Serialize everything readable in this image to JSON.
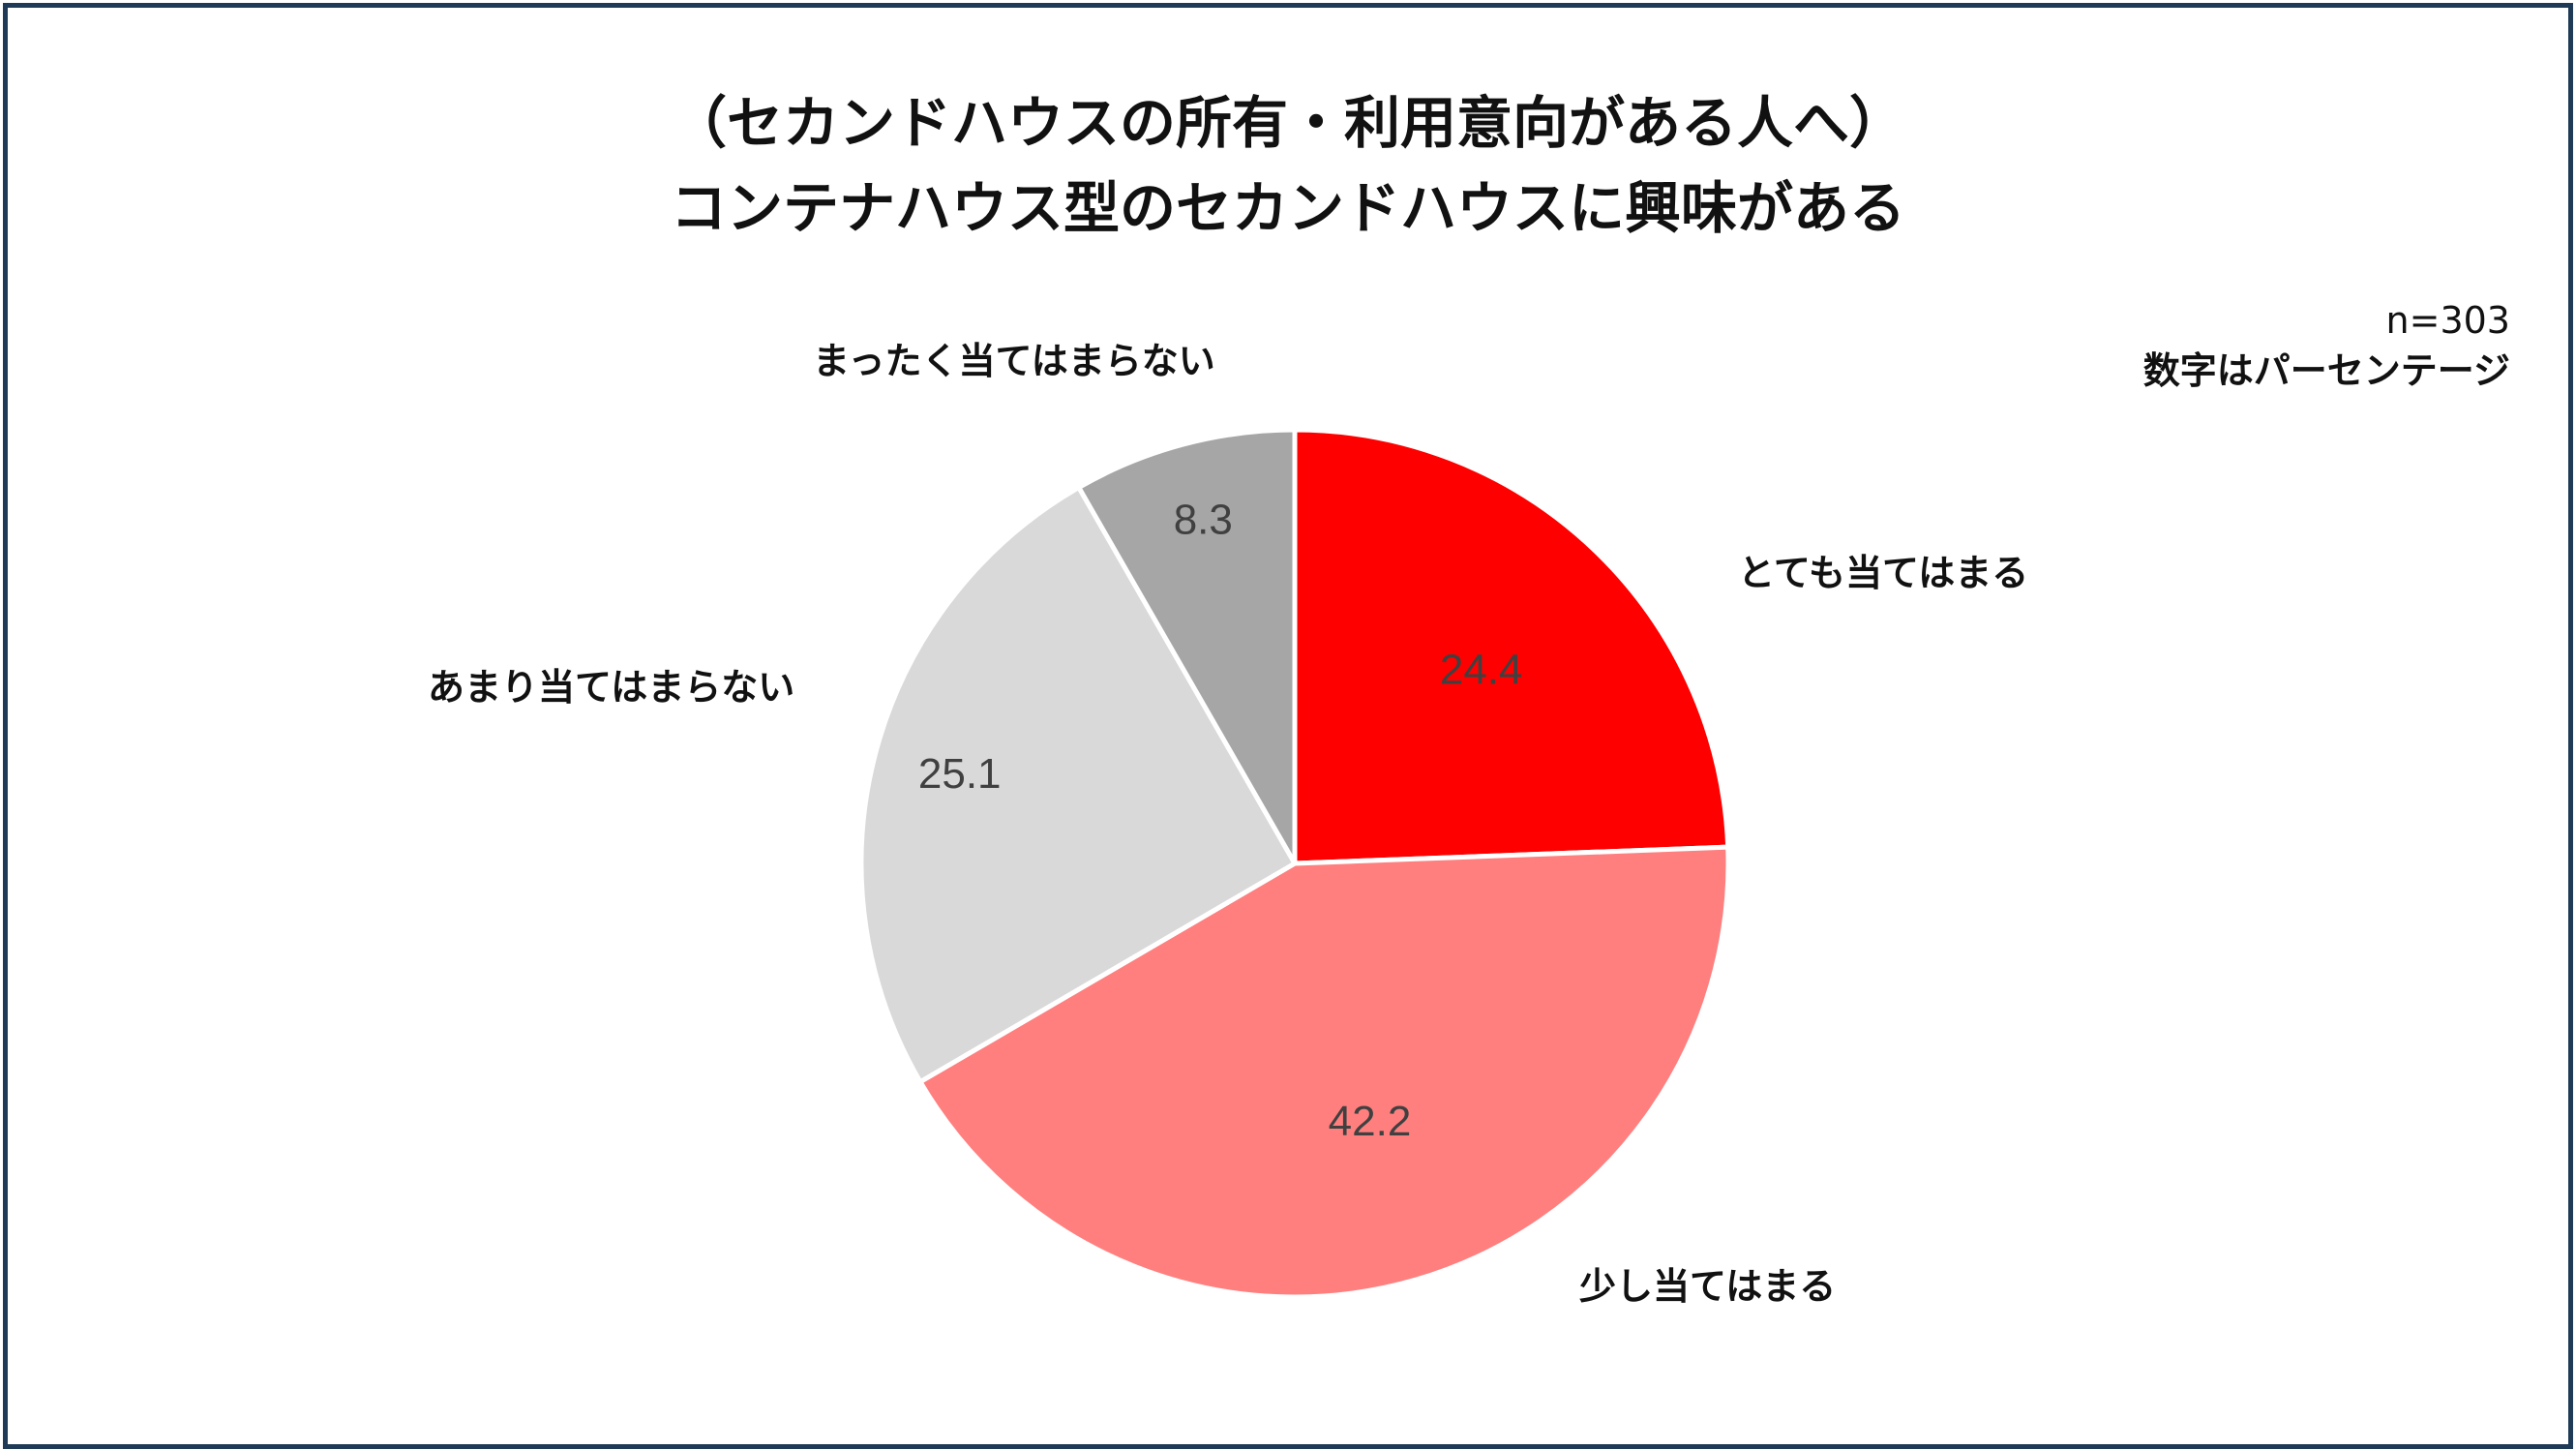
{
  "chart_data": {
    "type": "pie",
    "title_line1": "（セカンドハウスの所有・利用意向がある人へ）",
    "title_line2": "コンテナハウス型のセカンドハウスに興味がある",
    "sample_size": "n=303",
    "unit_note": "数字はパーセンテージ",
    "slices": [
      {
        "label": "とても当てはまる",
        "value": 24.4,
        "value_label": "24.4",
        "color": "#ff0000"
      },
      {
        "label": "少し当てはまる",
        "value": 42.2,
        "value_label": "42.2",
        "color": "#ff7f7f"
      },
      {
        "label": "あまり当てはまらない",
        "value": 25.1,
        "value_label": "25.1",
        "color": "#d9d9d9"
      },
      {
        "label": "まったく当てはまらない",
        "value": 8.3,
        "value_label": "8.3",
        "color": "#a6a6a6"
      }
    ],
    "start": "12 o'clock",
    "direction": "clockwise",
    "legend": "none (category labels placed beside slices)"
  }
}
